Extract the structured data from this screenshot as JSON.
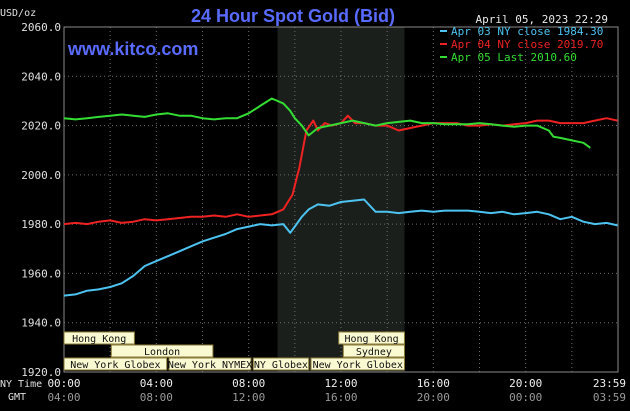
{
  "header": {
    "title": "24 Hour Spot Gold (Bid)",
    "date": "April 05, 2023 22:29",
    "website": "www.kitco.com",
    "unit": "USD/oz"
  },
  "legend": [
    {
      "label": "Apr 03 NY close 1984.30",
      "color": "#4cc3f0"
    },
    {
      "label": "Apr 04 NY close 2019.70",
      "color": "#ee2222"
    },
    {
      "label": "Apr 05 Last 2010.60",
      "color": "#33dd33"
    }
  ],
  "sessions": [
    {
      "label": "Hong Kong",
      "start": 0,
      "end": 3.05,
      "row": 0
    },
    {
      "label": "Hong Kong",
      "start": 11.9,
      "end": 14.75,
      "row": 0
    },
    {
      "label": "London",
      "start": 2.05,
      "end": 6.45,
      "row": 1
    },
    {
      "label": "Sydney",
      "start": 12.1,
      "end": 14.75,
      "row": 1
    },
    {
      "label": "New York Globex",
      "start": 0,
      "end": 4.45,
      "row": 2
    },
    {
      "label": "New York NYMEX",
      "start": 4.55,
      "end": 8.1,
      "row": 2
    },
    {
      "label": "NY Globex",
      "start": 8.2,
      "end": 10.6,
      "row": 2
    },
    {
      "label": "New York Globex",
      "start": 10.7,
      "end": 14.75,
      "row": 2
    }
  ],
  "time_labels": {
    "ny_label": "NY Time",
    "gmt_label": "GMT",
    "ny": [
      "00:00",
      "04:00",
      "08:00",
      "12:00",
      "16:00",
      "20:00",
      "23:59"
    ],
    "gmt": [
      "04:00",
      "08:00",
      "12:00",
      "16:00",
      "20:00",
      "00:00",
      "03:59"
    ]
  },
  "colors": {
    "background": "#000000",
    "grid": "#6e6e6e",
    "highlight": "#1b1f1b",
    "title": "#5a6bff",
    "website": "#5a6bff",
    "session_bg": "#fafad2",
    "session_border": "#8b7b3a",
    "text": "#e0e0e0"
  },
  "chart_data": {
    "type": "line",
    "x_unit": "hours (NY time)",
    "xlim": [
      0,
      24
    ],
    "ylim": [
      1920,
      2060
    ],
    "yticks": [
      "2060.0",
      "2040.0",
      "2020.0",
      "2000.0",
      "1980.0",
      "1960.0",
      "1940.0",
      "1920.0"
    ],
    "highlight_range": [
      9.25,
      14.75
    ],
    "series": [
      {
        "name": "Apr 03 NY close 1984.30",
        "color": "#4cc3f0",
        "x": [
          0,
          0.5,
          1,
          1.5,
          2,
          2.5,
          3,
          3.5,
          4,
          4.5,
          5,
          5.5,
          6,
          6.5,
          7,
          7.5,
          8,
          8.5,
          9,
          9.5,
          9.8,
          10,
          10.3,
          10.6,
          11,
          11.5,
          12,
          12.5,
          13,
          13.5,
          14,
          14.5,
          15,
          15.5,
          16,
          16.5,
          17,
          17.5,
          18,
          18.5,
          19,
          19.5,
          20,
          20.5,
          21,
          21.5,
          22,
          22.5,
          23,
          23.5,
          23.98
        ],
        "y": [
          1951,
          1951.5,
          1953,
          1953.5,
          1954.5,
          1956,
          1959,
          1963,
          1965,
          1967,
          1969,
          1971,
          1973,
          1974.5,
          1976,
          1978,
          1979,
          1980,
          1979.5,
          1980,
          1976.5,
          1979,
          1983,
          1986,
          1988,
          1987.5,
          1989,
          1989.5,
          1990,
          1985,
          1985,
          1984.5,
          1985,
          1985.5,
          1985,
          1985.5,
          1985.5,
          1985.5,
          1985,
          1984.5,
          1985,
          1984,
          1984.5,
          1985,
          1984,
          1982,
          1983,
          1981,
          1980,
          1980.5,
          1979.5
        ]
      },
      {
        "name": "Apr 04 NY close 2019.70",
        "color": "#ee2222",
        "x": [
          0,
          0.5,
          1,
          1.5,
          2,
          2.5,
          3,
          3.5,
          4,
          4.5,
          5,
          5.5,
          6,
          6.5,
          7,
          7.5,
          8,
          8.5,
          9,
          9.5,
          9.9,
          10.2,
          10.5,
          10.8,
          11,
          11.3,
          11.6,
          12,
          12.3,
          12.6,
          13,
          13.5,
          14,
          14.5,
          15,
          15.5,
          16,
          16.5,
          17,
          17.5,
          18,
          18.5,
          19,
          19.5,
          20,
          20.5,
          21,
          21.5,
          22,
          22.5,
          23,
          23.5,
          23.98
        ],
        "y": [
          1980,
          1980.5,
          1980,
          1981,
          1981.5,
          1980.5,
          1981,
          1982,
          1981.5,
          1982,
          1982.5,
          1983,
          1983,
          1983.5,
          1983,
          1984,
          1983,
          1983.5,
          1984,
          1986,
          1992,
          2003,
          2018,
          2022,
          2018,
          2021,
          2020,
          2021,
          2024,
          2021,
          2021,
          2020,
          2020,
          2018,
          2019,
          2020,
          2021,
          2021,
          2021,
          2020,
          2020,
          2020.5,
          2020,
          2020.5,
          2021,
          2022,
          2022,
          2021,
          2021,
          2021,
          2022,
          2023,
          2022
        ]
      },
      {
        "name": "Apr 05 Last 2010.60",
        "color": "#33dd33",
        "x": [
          0,
          0.5,
          1,
          1.5,
          2,
          2.5,
          3,
          3.5,
          4,
          4.5,
          5,
          5.5,
          6,
          6.5,
          7,
          7.5,
          8,
          8.5,
          9,
          9.5,
          9.8,
          10,
          10.3,
          10.6,
          11,
          11.5,
          12,
          12.5,
          13,
          13.5,
          14,
          14.5,
          15,
          15.5,
          16,
          16.5,
          17,
          17.5,
          18,
          18.5,
          19,
          19.5,
          20,
          20.5,
          21,
          21.2,
          21.5,
          22,
          22.5,
          22.8
        ],
        "y": [
          2023,
          2022.5,
          2023,
          2023.5,
          2024,
          2024.5,
          2024,
          2023.5,
          2024.5,
          2025,
          2024,
          2024,
          2023,
          2022.5,
          2023,
          2023,
          2025,
          2028,
          2031,
          2029,
          2026,
          2023,
          2020,
          2016,
          2019,
          2020,
          2021,
          2022,
          2021,
          2020,
          2021,
          2021.5,
          2022,
          2021,
          2021,
          2020.5,
          2020.5,
          2020.5,
          2021,
          2020.5,
          2020,
          2019.5,
          2020,
          2020,
          2018,
          2015.5,
          2015,
          2014,
          2013,
          2011
        ]
      }
    ]
  }
}
